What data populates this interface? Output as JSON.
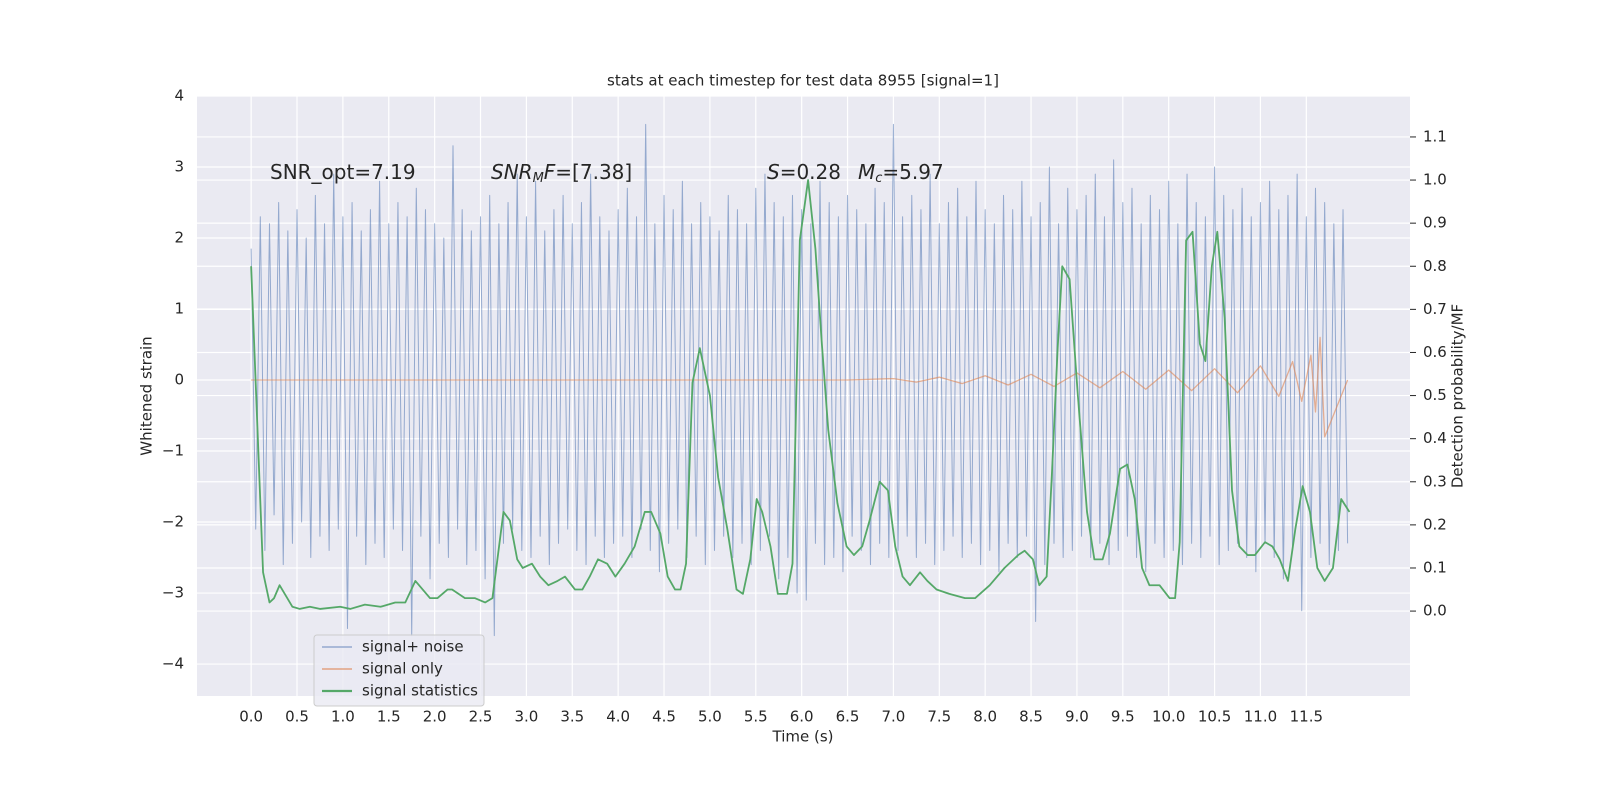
{
  "chart_data": {
    "type": "line",
    "title": "stats at each timestep for test data 8955 [signal=1]",
    "xlabel": "Time (s)",
    "ylabel": "Whitened strain",
    "y2label": "Detection probability/MF",
    "xlim": [
      -0.59,
      12.63
    ],
    "ylim": [
      -4.45,
      4.0
    ],
    "y2lim": [
      -0.197,
      1.195
    ],
    "xticks": [
      {
        "value": 0,
        "label": "0.0"
      },
      0.5,
      {
        "value": 1,
        "label": "1.0"
      },
      1.5,
      {
        "value": 2,
        "label": "2.0"
      },
      2.5,
      {
        "value": 3,
        "label": "3.0"
      },
      3.5,
      {
        "value": 4,
        "label": "4.0"
      },
      4.5,
      {
        "value": 5,
        "label": "5.0"
      },
      5.5,
      {
        "value": 6,
        "label": "6.0"
      },
      6.5,
      {
        "value": 7,
        "label": "7.0"
      },
      7.5,
      {
        "value": 8,
        "label": "8.0"
      },
      8.5,
      {
        "value": 9,
        "label": "9.0"
      },
      9.5,
      {
        "value": 10,
        "label": "10.0"
      },
      10.5,
      {
        "value": 11,
        "label": "11.0"
      },
      11.5
    ],
    "yticks": [
      {
        "value": -4,
        "label": "−4"
      },
      {
        "value": -3,
        "label": "−3"
      },
      {
        "value": -2,
        "label": "−2"
      },
      {
        "value": -1,
        "label": "−1"
      },
      0,
      1,
      2,
      3,
      4
    ],
    "y2ticks": [
      {
        "value": 0,
        "label": "0.0"
      },
      0.1,
      0.2,
      0.3,
      0.4,
      0.5,
      0.6,
      0.7,
      0.8,
      0.9,
      {
        "value": 1,
        "label": "1.0"
      },
      1.1
    ],
    "grid": true,
    "legend_loc": "lower left",
    "annotations": [
      [
        "SNR_opt=7.19"
      ],
      [
        "SNR",
        "M",
        "F",
        "=[7.38]"
      ],
      [
        "S",
        "=0.28"
      ],
      [
        "M",
        "c",
        "=5.97"
      ]
    ],
    "series": [
      {
        "name": "signal+ noise",
        "color": "#4c72b0",
        "x": [
          0,
          0.05,
          0.1,
          0.15,
          0.2,
          0.25,
          0.3,
          0.35,
          0.4,
          0.45,
          0.5,
          0.55,
          0.6,
          0.65,
          0.7,
          0.75,
          0.8,
          0.85,
          0.9,
          0.95,
          1,
          1.05,
          1.1,
          1.15,
          1.2,
          1.25,
          1.3,
          1.35,
          1.4,
          1.45,
          1.5,
          1.55,
          1.6,
          1.65,
          1.7,
          1.75,
          1.8,
          1.85,
          1.9,
          1.95,
          2,
          2.05,
          2.1,
          2.15,
          2.2,
          2.25,
          2.3,
          2.35,
          2.4,
          2.45,
          2.5,
          2.55,
          2.6,
          2.65,
          2.7,
          2.75,
          2.8,
          2.85,
          2.9,
          2.95,
          3,
          3.05,
          3.1,
          3.15,
          3.2,
          3.25,
          3.3,
          3.35,
          3.4,
          3.45,
          3.5,
          3.55,
          3.6,
          3.65,
          3.7,
          3.75,
          3.8,
          3.85,
          3.9,
          3.95,
          4,
          4.05,
          4.1,
          4.15,
          4.2,
          4.25,
          4.3,
          4.35,
          4.4,
          4.45,
          4.5,
          4.55,
          4.6,
          4.65,
          4.7,
          4.75,
          4.8,
          4.85,
          4.9,
          4.95,
          5,
          5.05,
          5.1,
          5.15,
          5.2,
          5.25,
          5.3,
          5.35,
          5.4,
          5.45,
          5.5,
          5.55,
          5.6,
          5.65,
          5.7,
          5.75,
          5.8,
          5.85,
          5.9,
          5.95,
          6,
          6.05,
          6.1,
          6.15,
          6.2,
          6.25,
          6.3,
          6.35,
          6.4,
          6.45,
          6.5,
          6.55,
          6.6,
          6.65,
          6.7,
          6.75,
          6.8,
          6.85,
          6.9,
          6.95,
          7,
          7.05,
          7.1,
          7.15,
          7.2,
          7.25,
          7.3,
          7.35,
          7.4,
          7.45,
          7.5,
          7.55,
          7.6,
          7.65,
          7.7,
          7.75,
          7.8,
          7.85,
          7.9,
          7.95,
          8,
          8.05,
          8.1,
          8.15,
          8.2,
          8.25,
          8.3,
          8.35,
          8.4,
          8.45,
          8.5,
          8.55,
          8.6,
          8.65,
          8.7,
          8.75,
          8.8,
          8.85,
          8.9,
          8.95,
          9,
          9.05,
          9.1,
          9.15,
          9.2,
          9.25,
          9.3,
          9.35,
          9.4,
          9.45,
          9.5,
          9.55,
          9.6,
          9.65,
          9.7,
          9.75,
          9.8,
          9.85,
          9.9,
          9.95,
          10,
          10.05,
          10.1,
          10.15,
          10.2,
          10.25,
          10.3,
          10.35,
          10.4,
          10.45,
          10.5,
          10.55,
          10.6,
          10.65,
          10.7,
          10.75,
          10.8,
          10.85,
          10.9,
          10.95,
          11,
          11.05,
          11.1,
          11.15,
          11.2,
          11.25,
          11.3,
          11.35,
          11.4,
          11.45,
          11.5,
          11.55,
          11.6,
          11.65,
          11.7,
          11.75,
          11.8,
          11.85,
          11.9,
          11.95
        ],
        "values": [
          1.85,
          -2.1,
          2.3,
          -2.4,
          2.2,
          -1.9,
          2.5,
          -2.6,
          2.1,
          -2.3,
          2.4,
          -2.0,
          2.0,
          -2.5,
          2.6,
          -2.2,
          2.2,
          -2.4,
          2.9,
          -2.1,
          2.3,
          -3.5,
          2.5,
          -2.2,
          2.1,
          -2.6,
          2.4,
          -2.3,
          2.8,
          -2.5,
          2.2,
          -2.1,
          2.5,
          -2.4,
          2.3,
          -3.6,
          2.7,
          -2.2,
          2.4,
          -2.8,
          2.2,
          -2.3,
          2.0,
          -2.5,
          3.3,
          -2.1,
          2.4,
          -2.6,
          2.1,
          -2.4,
          2.3,
          -2.8,
          2.6,
          -3.6,
          2.2,
          -2.3,
          2.5,
          -2.1,
          2.9,
          -2.4,
          2.3,
          -2.5,
          2.8,
          -2.2,
          2.1,
          -2.6,
          2.4,
          -2.3,
          2.6,
          -2.1,
          2.2,
          -2.4,
          2.5,
          -2.6,
          2.9,
          -2.2,
          2.3,
          -2.5,
          2.1,
          -2.3,
          2.4,
          -2.2,
          2.7,
          -2.5,
          2.3,
          -2.1,
          3.6,
          -2.4,
          2.2,
          -2.7,
          2.6,
          -2.3,
          2.4,
          -2.1,
          2.8,
          -2.5,
          2.2,
          -2.2,
          2.5,
          -2.6,
          2.3,
          -2.4,
          2.1,
          -2.2,
          2.6,
          -2.5,
          2.4,
          -2.3,
          2.2,
          -2.6,
          2.7,
          -2.4,
          2.9,
          -2.2,
          2.5,
          -2.8,
          2.3,
          -2.5,
          2.6,
          -3.0,
          2.4,
          -3.1,
          2.2,
          -2.3,
          2.8,
          -2.6,
          2.5,
          -2.5,
          2.3,
          -2.7,
          2.6,
          -2.2,
          2.4,
          -2.4,
          2.2,
          -2.6,
          2.7,
          -2.3,
          2.5,
          -2.5,
          3.6,
          -2.4,
          2.3,
          -2.2,
          2.6,
          -2.5,
          2.4,
          -2.3,
          2.9,
          -2.6,
          2.2,
          -2.4,
          2.5,
          -2.2,
          2.7,
          -2.5,
          2.3,
          -2.3,
          2.8,
          -2.6,
          2.4,
          -2.4,
          2.2,
          -2.7,
          2.6,
          -2.3,
          2.4,
          -2.5,
          2.8,
          -2.2,
          2.3,
          -3.4,
          2.5,
          -2.6,
          3.0,
          -2.3,
          2.2,
          -2.5,
          2.7,
          -2.4,
          2.4,
          -2.2,
          2.6,
          -2.5,
          2.9,
          -2.3,
          2.3,
          -2.6,
          3.1,
          -2.4,
          2.5,
          -2.2,
          2.7,
          -2.5,
          2.2,
          -2.7,
          2.6,
          -2.3,
          2.4,
          -2.5,
          2.8,
          -2.4,
          2.2,
          -2.6,
          2.9,
          -2.3,
          2.5,
          -2.5,
          2.3,
          -2.2,
          3.0,
          -2.6,
          2.6,
          -2.4,
          2.4,
          -2.3,
          2.7,
          -2.5,
          2.3,
          -2.7,
          2.5,
          -2.3,
          2.8,
          -2.5,
          2.4,
          -2.8,
          2.6,
          -2.4,
          2.9,
          -3.25,
          2.3,
          -2.5,
          2.7,
          -2.3,
          2.5,
          -2.6,
          2.2,
          -2.4,
          2.4,
          -2.3
        ]
      },
      {
        "name": "signal only",
        "color": "#dd8452",
        "x": [
          0,
          6.5,
          7.0,
          7.25,
          7.5,
          7.75,
          8.0,
          8.25,
          8.5,
          8.75,
          9.0,
          9.25,
          9.5,
          9.75,
          10.0,
          10.25,
          10.5,
          10.75,
          11.0,
          11.2,
          11.35,
          11.45,
          11.55,
          11.6,
          11.65,
          11.7,
          11.95
        ],
        "values": [
          0,
          0,
          0.02,
          -0.03,
          0.04,
          -0.05,
          0.06,
          -0.07,
          0.08,
          -0.09,
          0.1,
          -0.11,
          0.12,
          -0.13,
          0.14,
          -0.15,
          0.16,
          -0.18,
          0.2,
          -0.23,
          0.26,
          -0.3,
          0.35,
          -0.45,
          0.6,
          -0.8,
          0
        ]
      },
      {
        "name": "signal statistics",
        "color": "#55a868",
        "axis": "y2",
        "x": [
          0,
          0.13,
          0.2,
          0.25,
          0.31,
          0.45,
          0.53,
          0.64,
          0.75,
          0.97,
          1.08,
          1.24,
          1.41,
          1.57,
          1.68,
          1.79,
          1.95,
          2.03,
          2.14,
          2.19,
          2.33,
          2.44,
          2.55,
          2.63,
          2.75,
          2.82,
          2.9,
          2.96,
          3.06,
          3.15,
          3.24,
          3.34,
          3.42,
          3.53,
          3.61,
          3.69,
          3.78,
          3.88,
          3.97,
          4.07,
          4.18,
          4.29,
          4.36,
          4.46,
          4.54,
          4.62,
          4.68,
          4.74,
          4.81,
          4.89,
          5.0,
          5.09,
          5.19,
          5.29,
          5.36,
          5.44,
          5.51,
          5.57,
          5.66,
          5.74,
          5.84,
          5.9,
          5.98,
          6.07,
          6.15,
          6.22,
          6.29,
          6.39,
          6.49,
          6.57,
          6.66,
          6.74,
          6.85,
          6.94,
          7.02,
          7.1,
          7.18,
          7.29,
          7.37,
          7.47,
          7.61,
          7.78,
          7.89,
          8.05,
          8.21,
          8.36,
          8.43,
          8.52,
          8.59,
          8.67,
          8.73,
          8.79,
          8.84,
          8.92,
          9.01,
          9.11,
          9.19,
          9.28,
          9.36,
          9.47,
          9.55,
          9.63,
          9.71,
          9.79,
          9.9,
          10.01,
          10.07,
          10.12,
          10.19,
          10.26,
          10.34,
          10.4,
          10.47,
          10.53,
          10.61,
          10.69,
          10.77,
          10.86,
          10.94,
          11.05,
          11.13,
          11.21,
          11.3,
          11.38,
          11.46,
          11.54,
          11.62,
          11.7,
          11.79,
          11.88,
          11.97
        ],
        "values": [
          0.8,
          0.09,
          0.02,
          0.03,
          0.06,
          0.01,
          0.005,
          0.01,
          0.005,
          0.01,
          0.005,
          0.015,
          0.01,
          0.02,
          0.02,
          0.07,
          0.03,
          0.03,
          0.05,
          0.05,
          0.03,
          0.03,
          0.02,
          0.03,
          0.23,
          0.21,
          0.12,
          0.1,
          0.11,
          0.08,
          0.06,
          0.07,
          0.08,
          0.05,
          0.05,
          0.08,
          0.12,
          0.11,
          0.08,
          0.11,
          0.15,
          0.23,
          0.23,
          0.18,
          0.08,
          0.05,
          0.05,
          0.11,
          0.53,
          0.61,
          0.5,
          0.31,
          0.19,
          0.05,
          0.04,
          0.12,
          0.26,
          0.23,
          0.15,
          0.04,
          0.04,
          0.11,
          0.86,
          1.0,
          0.84,
          0.62,
          0.42,
          0.25,
          0.15,
          0.13,
          0.15,
          0.21,
          0.3,
          0.28,
          0.15,
          0.08,
          0.06,
          0.09,
          0.07,
          0.05,
          0.04,
          0.03,
          0.03,
          0.06,
          0.1,
          0.13,
          0.14,
          0.12,
          0.06,
          0.08,
          0.33,
          0.61,
          0.8,
          0.77,
          0.5,
          0.23,
          0.12,
          0.12,
          0.18,
          0.33,
          0.34,
          0.26,
          0.1,
          0.06,
          0.06,
          0.03,
          0.03,
          0.16,
          0.86,
          0.88,
          0.62,
          0.58,
          0.8,
          0.88,
          0.68,
          0.28,
          0.15,
          0.13,
          0.13,
          0.16,
          0.15,
          0.12,
          0.07,
          0.19,
          0.29,
          0.23,
          0.1,
          0.07,
          0.1,
          0.26,
          0.23
        ]
      }
    ]
  }
}
